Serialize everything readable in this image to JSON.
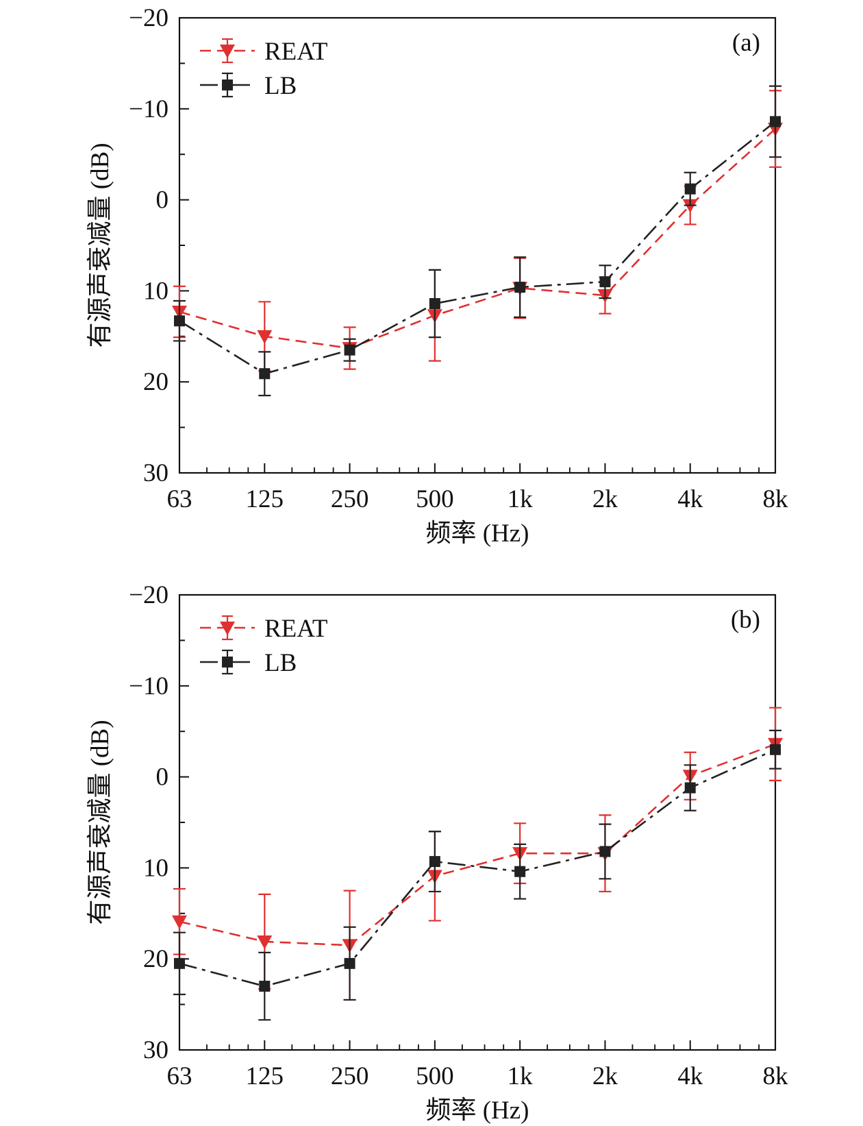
{
  "chart_data": [
    {
      "type": "line",
      "panel_label": "(a)",
      "xlabel": "频率 (Hz)",
      "ylabel": "有源声衰减量 (dB)",
      "categories": [
        "63",
        "125",
        "250",
        "500",
        "1k",
        "2k",
        "4k",
        "8k"
      ],
      "x_scale": "log2-frequency",
      "ylim": [
        30,
        -20
      ],
      "y_inverted": true,
      "yticks": [
        -20,
        -10,
        0,
        10,
        20,
        30
      ],
      "ytick_labels": [
        "−20",
        "−10",
        "0",
        "10",
        "20",
        "30"
      ],
      "grid": false,
      "legend_position": "top-left",
      "series": [
        {
          "name": "REAT",
          "color": "#e03030",
          "marker": "triangle-down",
          "line_style": "dashed",
          "values": [
            12.3,
            15.0,
            16.3,
            12.7,
            9.7,
            10.5,
            0.6,
            -7.8
          ],
          "errors": [
            2.8,
            3.8,
            2.3,
            5.0,
            3.3,
            2.0,
            2.1,
            4.2
          ]
        },
        {
          "name": "LB",
          "color": "#222222",
          "marker": "square",
          "line_style": "long-dash-dot",
          "values": [
            13.3,
            19.1,
            16.5,
            11.4,
            9.6,
            9.0,
            -1.2,
            -8.6
          ],
          "errors": [
            2.2,
            2.4,
            1.2,
            3.7,
            3.3,
            1.8,
            1.8,
            3.9
          ]
        }
      ]
    },
    {
      "type": "line",
      "panel_label": "(b)",
      "xlabel": "频率 (Hz)",
      "ylabel": "有源声衰减量 (dB)",
      "categories": [
        "63",
        "125",
        "250",
        "500",
        "1k",
        "2k",
        "4k",
        "8k"
      ],
      "x_scale": "log2-frequency",
      "ylim": [
        30,
        -20
      ],
      "y_inverted": true,
      "yticks": [
        -20,
        -10,
        0,
        10,
        20,
        30
      ],
      "ytick_labels": [
        "−20",
        "−10",
        "0",
        "10",
        "20",
        "30"
      ],
      "grid": false,
      "legend_position": "top-left",
      "series": [
        {
          "name": "REAT",
          "color": "#e03030",
          "marker": "triangle-down",
          "line_style": "dashed",
          "values": [
            15.9,
            18.1,
            18.5,
            10.9,
            8.4,
            8.4,
            -0.1,
            -3.6
          ],
          "errors": [
            3.6,
            5.2,
            6.0,
            4.9,
            3.3,
            4.2,
            2.6,
            4.0
          ]
        },
        {
          "name": "LB",
          "color": "#222222",
          "marker": "square",
          "line_style": "long-dash-dot",
          "values": [
            20.5,
            23.0,
            20.5,
            9.3,
            10.4,
            8.2,
            1.2,
            -3.0
          ],
          "errors": [
            3.4,
            3.7,
            4.0,
            3.3,
            3.0,
            3.0,
            2.5,
            2.1
          ]
        }
      ]
    }
  ]
}
